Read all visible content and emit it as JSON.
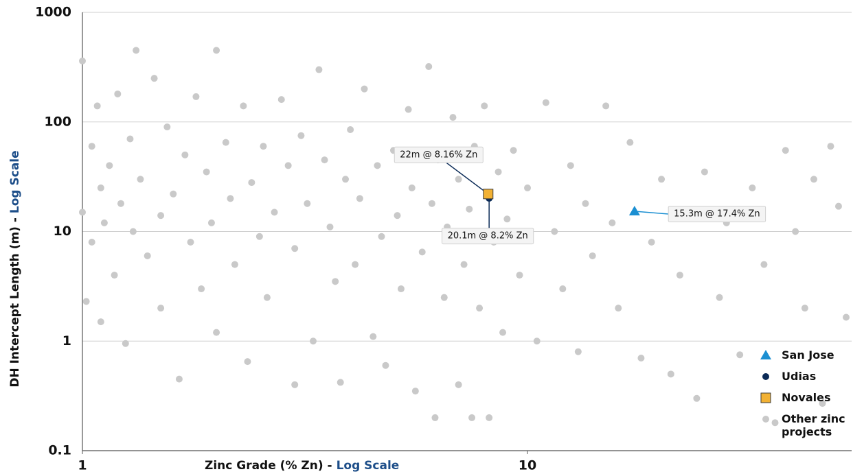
{
  "chart_data": {
    "type": "scatter",
    "xlabel": "Zinc Grade (% Zn) -",
    "xlabel_highlight": "Log Scale",
    "ylabel": "DH Intercept Length (m) -",
    "ylabel_highlight": "Log Scale",
    "xscale": "log",
    "yscale": "log",
    "xlim": [
      1,
      53.5
    ],
    "ylim": [
      0.1,
      1000
    ],
    "xticks": [
      1,
      10
    ],
    "yticks": [
      0.1,
      1,
      10,
      100,
      1000
    ],
    "grid": true,
    "legend": "lower right",
    "series": [
      {
        "name": "San Jose",
        "color": "#1b8fd2",
        "marker": "triangle",
        "x": [
          17.4
        ],
        "values": [
          15.3
        ],
        "annotation": "15.3m @ 17.4% Zn"
      },
      {
        "name": "Udias",
        "color": "#0b2b57",
        "marker": "circle",
        "x": [
          8.2
        ],
        "values": [
          20.1
        ],
        "annotation": "20.1m @ 8.2% Zn"
      },
      {
        "name": "Novales",
        "color": "#f2b133",
        "marker": "square",
        "x": [
          8.16
        ],
        "values": [
          22
        ],
        "annotation": "22m @ 8.16% Zn"
      },
      {
        "name": "Other zinc projects",
        "color": "#c9c9c9",
        "marker": "circle",
        "x": [
          1.0,
          1.0,
          1.02,
          1.05,
          1.05,
          1.08,
          1.1,
          1.1,
          1.12,
          1.15,
          1.18,
          1.2,
          1.22,
          1.25,
          1.28,
          1.3,
          1.32,
          1.35,
          1.4,
          1.45,
          1.5,
          1.5,
          1.55,
          1.6,
          1.65,
          1.7,
          1.75,
          1.8,
          1.85,
          1.9,
          1.95,
          2.0,
          2.0,
          2.1,
          2.15,
          2.2,
          2.3,
          2.35,
          2.4,
          2.5,
          2.55,
          2.6,
          2.7,
          2.8,
          2.9,
          3.0,
          3.0,
          3.1,
          3.2,
          3.3,
          3.4,
          3.5,
          3.6,
          3.7,
          3.8,
          3.9,
          4.0,
          4.1,
          4.2,
          4.3,
          4.5,
          4.6,
          4.7,
          4.8,
          5.0,
          5.1,
          5.2,
          5.4,
          5.5,
          5.6,
          5.8,
          6.0,
          6.1,
          6.2,
          6.3,
          6.5,
          6.6,
          6.8,
          7.0,
          7.0,
          7.2,
          7.4,
          7.5,
          7.6,
          7.8,
          8.0,
          8.2,
          8.4,
          8.6,
          8.8,
          9.0,
          9.3,
          9.6,
          10,
          10.5,
          11,
          11.5,
          12,
          12.5,
          13,
          13.5,
          14,
          15,
          15.5,
          16,
          17,
          18,
          19,
          20,
          21,
          22,
          23,
          24,
          25,
          27,
          28,
          30,
          32,
          34,
          36,
          38,
          40,
          42,
          44,
          46,
          48,
          50,
          52
        ],
        "values": [
          15,
          360,
          2.3,
          60,
          8,
          140,
          25,
          1.5,
          12,
          40,
          4,
          180,
          18,
          0.95,
          70,
          10,
          450,
          30,
          6,
          250,
          14,
          2,
          90,
          22,
          0.45,
          50,
          8,
          170,
          3,
          35,
          12,
          450,
          1.2,
          65,
          20,
          5,
          140,
          0.65,
          28,
          9,
          60,
          2.5,
          15,
          160,
          40,
          0.4,
          7,
          75,
          18,
          1.0,
          300,
          45,
          11,
          3.5,
          0.42,
          30,
          85,
          5,
          20,
          200,
          1.1,
          40,
          9,
          0.6,
          55,
          14,
          3,
          130,
          25,
          0.35,
          6.5,
          320,
          18,
          0.2,
          45,
          2.5,
          11,
          110,
          0.4,
          30,
          5,
          16,
          0.2,
          60,
          2,
          140,
          0.2,
          8,
          35,
          1.2,
          13,
          55,
          4,
          25,
          1.0,
          150,
          10,
          3,
          40,
          0.8,
          18,
          6,
          140,
          12,
          2,
          65,
          0.7,
          8,
          30,
          0.5,
          4,
          15,
          0.3,
          35,
          2.5,
          12,
          0.75,
          25,
          5,
          0.18,
          55,
          10,
          2,
          30,
          0.27,
          60,
          17,
          1.65
        ]
      }
    ]
  }
}
